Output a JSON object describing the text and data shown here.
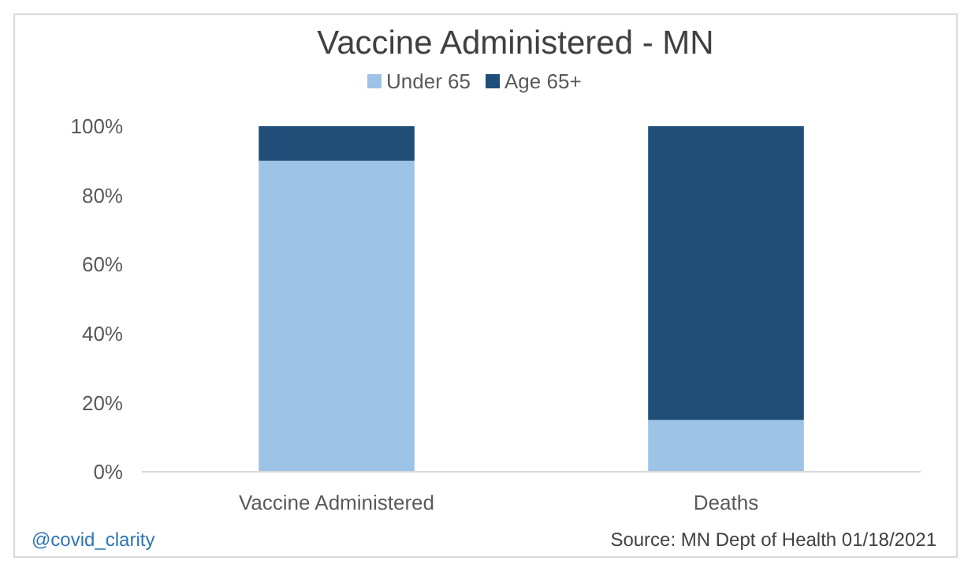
{
  "chart_data": {
    "type": "bar",
    "title": "Vaccine Administered - MN",
    "categories": [
      "Vaccine Administered",
      "Deaths"
    ],
    "stacked": true,
    "series": [
      {
        "name": "Under 65",
        "color": "#9dc3e6",
        "values": [
          90,
          15
        ]
      },
      {
        "name": "Age 65+",
        "color": "#1f4e79",
        "values": [
          10,
          85
        ]
      }
    ],
    "ylim": [
      0,
      100
    ],
    "yticks": [
      {
        "value": 0,
        "label": "0%"
      },
      {
        "value": 20,
        "label": "20%"
      },
      {
        "value": 40,
        "label": "40%"
      },
      {
        "value": 60,
        "label": "60%"
      },
      {
        "value": 80,
        "label": "80%"
      },
      {
        "value": 100,
        "label": "100%"
      }
    ],
    "grid": false,
    "legend": "top",
    "annotations": [
      "@covid_clarity",
      "Source: MN Dept of Health  01/18/2021"
    ]
  }
}
